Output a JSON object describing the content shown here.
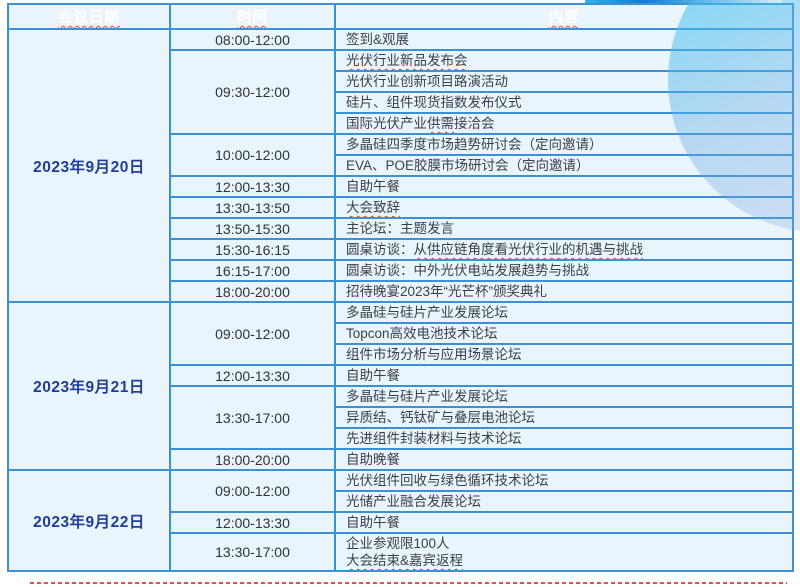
{
  "colors": {
    "header_bg": "#0f86d9",
    "cell_bg": "#e9f4fc",
    "border": "#3a92d4",
    "date_text": "#1e3d96",
    "body_text": "#3c4046",
    "header_text": "#ffffff",
    "misspell_underline": "#e8483e"
  },
  "header": {
    "date": "会议日期",
    "time": "时间",
    "content": "内容"
  },
  "days": [
    {
      "date": "2023年9月20日",
      "slots": [
        {
          "time": "08:00-12:00",
          "items": [
            {
              "lines": [
                [
                  {
                    "t": "签到&观展",
                    "m": false
                  }
                ]
              ]
            }
          ]
        },
        {
          "time": "09:30-12:00",
          "items": [
            {
              "lines": [
                [
                  {
                    "t": "光伏行业新品发布会",
                    "m": true
                  }
                ]
              ]
            },
            {
              "lines": [
                [
                  {
                    "t": "光伏行业创新项目路演活动",
                    "m": false
                  }
                ]
              ]
            },
            {
              "lines": [
                [
                  {
                    "t": "硅片、组件现货指数发布仪式",
                    "m": false
                  }
                ]
              ]
            },
            {
              "lines": [
                [
                  {
                    "t": "国际光伏产业",
                    "m": false
                  },
                  {
                    "t": "供需",
                    "m": true
                  },
                  {
                    "t": "接洽会",
                    "m": false
                  }
                ]
              ]
            }
          ]
        },
        {
          "time": "10:00-12:00",
          "items": [
            {
              "lines": [
                [
                  {
                    "t": "多晶硅四季度市场趋势研讨会（定向邀请）",
                    "m": false
                  }
                ]
              ]
            },
            {
              "lines": [
                [
                  {
                    "t": "EVA、POE胶膜市场研讨会（定向邀请）",
                    "m": false
                  }
                ]
              ]
            }
          ]
        },
        {
          "time": "12:00-13:30",
          "items": [
            {
              "lines": [
                [
                  {
                    "t": "自助午餐",
                    "m": false
                  }
                ]
              ]
            }
          ]
        },
        {
          "time": "13:30-13:50",
          "items": [
            {
              "lines": [
                [
                  {
                    "t": "大会致辞",
                    "m": true
                  }
                ]
              ]
            }
          ]
        },
        {
          "time": "13:50-15:30",
          "items": [
            {
              "lines": [
                [
                  {
                    "t": "主论坛：主题发言",
                    "m": false
                  }
                ]
              ]
            }
          ]
        },
        {
          "time": "15:30-16:15",
          "items": [
            {
              "lines": [
                [
                  {
                    "t": "圆桌访谈：",
                    "m": false
                  },
                  {
                    "t": "从供应链角度看光伏行业的机遇与挑战",
                    "m": true
                  }
                ]
              ]
            }
          ]
        },
        {
          "time": "16:15-17:00",
          "items": [
            {
              "lines": [
                [
                  {
                    "t": "圆桌访谈：中外光伏电站发展趋势与挑战",
                    "m": false
                  }
                ]
              ]
            }
          ]
        },
        {
          "time": "18:00-20:00",
          "items": [
            {
              "lines": [
                [
                  {
                    "t": "招待晚宴2023年“光芒杯”颁奖典礼",
                    "m": false
                  }
                ]
              ]
            }
          ]
        }
      ]
    },
    {
      "date": "2023年9月21日",
      "slots": [
        {
          "time": "09:00-12:00",
          "items": [
            {
              "lines": [
                [
                  {
                    "t": "多晶硅与硅片产业发展论坛",
                    "m": false
                  }
                ]
              ]
            },
            {
              "lines": [
                [
                  {
                    "t": "Topcon高效电池技术论坛",
                    "m": false
                  }
                ]
              ]
            },
            {
              "lines": [
                [
                  {
                    "t": "组件市场分析与应用场景论坛",
                    "m": false
                  }
                ]
              ]
            }
          ]
        },
        {
          "time": "12:00-13:30",
          "items": [
            {
              "lines": [
                [
                  {
                    "t": "自助午餐",
                    "m": false
                  }
                ]
              ]
            }
          ]
        },
        {
          "time": "13:30-17:00",
          "items": [
            {
              "lines": [
                [
                  {
                    "t": "多晶硅与硅片产业发展论坛",
                    "m": false
                  }
                ]
              ]
            },
            {
              "lines": [
                [
                  {
                    "t": "异质结、钙钛矿与叠层电池论坛",
                    "m": false
                  }
                ]
              ]
            },
            {
              "lines": [
                [
                  {
                    "t": "先进组件封装材料与技术论坛",
                    "m": false
                  }
                ]
              ]
            }
          ]
        },
        {
          "time": "18:00-20:00",
          "items": [
            {
              "lines": [
                [
                  {
                    "t": "自助晚餐",
                    "m": false
                  }
                ]
              ]
            }
          ]
        }
      ]
    },
    {
      "date": "2023年9月22日",
      "slots": [
        {
          "time": "09:00-12:00",
          "items": [
            {
              "lines": [
                [
                  {
                    "t": "光伏组件回收与绿色循环技术论坛",
                    "m": false
                  }
                ]
              ]
            },
            {
              "lines": [
                [
                  {
                    "t": "光储产业融合发展论坛",
                    "m": false
                  }
                ]
              ]
            }
          ]
        },
        {
          "time": "12:00-13:30",
          "items": [
            {
              "lines": [
                [
                  {
                    "t": "自助午餐",
                    "m": false
                  }
                ]
              ]
            }
          ]
        },
        {
          "time": "13:30-17:00",
          "items": [
            {
              "lines": [
                [
                  {
                    "t": "企业参观限100人",
                    "m": false
                  }
                ],
                [
                  {
                    "t": "大会结束&嘉宾返程",
                    "m": true
                  }
                ]
              ]
            }
          ]
        }
      ]
    }
  ]
}
